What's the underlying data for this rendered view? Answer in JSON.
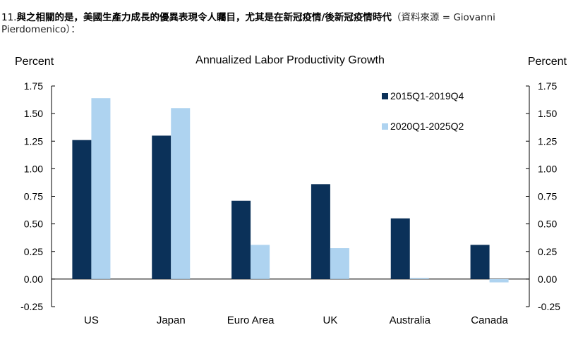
{
  "caption": {
    "number": "11.",
    "headline": "與之相關的是，美國生產力成長的優異表現令人矚目，尤其是在新冠疫情/後新冠疫情時代",
    "source": "（資料來源 = Giovanni Pierdomenico）："
  },
  "chart_data": {
    "type": "bar",
    "title": "Annualized Labor Productivity Growth",
    "ylabel_left": "Percent",
    "ylabel_right": "Percent",
    "categories": [
      "US",
      "Japan",
      "Euro Area",
      "UK",
      "Australia",
      "Canada"
    ],
    "series": [
      {
        "name": "2015Q1-2019Q4",
        "color": "#0b3159",
        "values": [
          1.26,
          1.3,
          0.71,
          0.86,
          0.55,
          0.31
        ]
      },
      {
        "name": "2020Q1-2025Q2",
        "color": "#aed3f0",
        "values": [
          1.64,
          1.55,
          0.31,
          0.28,
          0.01,
          -0.03
        ]
      }
    ],
    "ylim": [
      -0.25,
      1.75
    ],
    "yticks": [
      "-0.25",
      "0.00",
      "0.25",
      "0.50",
      "0.75",
      "1.00",
      "1.25",
      "1.50",
      "1.75"
    ],
    "legend_position": "top-right",
    "grid": false
  }
}
